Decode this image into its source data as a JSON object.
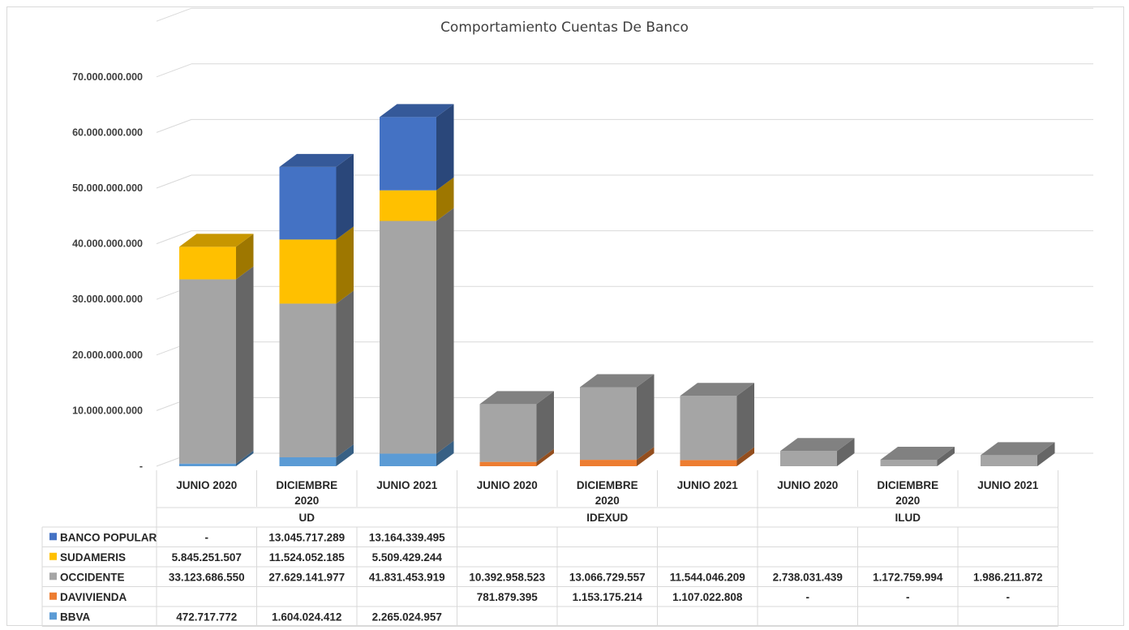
{
  "chart_data": {
    "type": "bar",
    "stacked": true,
    "style": "3d-column-with-data-table",
    "title": "Comportamiento Cuentas De Banco",
    "groups": [
      {
        "name": "UD",
        "categories": [
          "JUNIO 2020",
          "DICIEMBRE 2020",
          "JUNIO 2021"
        ]
      },
      {
        "name": "IDEXUD",
        "categories": [
          "JUNIO 2020",
          "DICIEMBRE 2020",
          "JUNIO 2021"
        ]
      },
      {
        "name": "ILUD",
        "categories": [
          "JUNIO 2020",
          "DICIEMBRE 2020",
          "JUNIO 2021"
        ]
      }
    ],
    "categories": [
      "JUNIO 2020",
      "DICIEMBRE 2020",
      "JUNIO 2021",
      "JUNIO 2020",
      "DICIEMBRE 2020",
      "JUNIO 2021",
      "JUNIO 2020",
      "DICIEMBRE 2020",
      "JUNIO 2021"
    ],
    "category_lines": [
      [
        "JUNIO 2020"
      ],
      [
        "DICIEMBRE",
        "2020"
      ],
      [
        "JUNIO 2021"
      ],
      [
        "JUNIO 2020"
      ],
      [
        "DICIEMBRE",
        "2020"
      ],
      [
        "JUNIO 2021"
      ],
      [
        "JUNIO 2020"
      ],
      [
        "DICIEMBRE",
        "2020"
      ],
      [
        "JUNIO 2021"
      ]
    ],
    "series": [
      {
        "name": "BANCO POPULAR",
        "color": "#4472c4",
        "values": [
          0,
          13045717289,
          13164339495,
          null,
          null,
          null,
          null,
          null,
          null
        ],
        "labels": [
          "-",
          "13.045.717.289",
          "13.164.339.495",
          "",
          "",
          "",
          "",
          "",
          ""
        ]
      },
      {
        "name": "SUDAMERIS",
        "color": "#ffc000",
        "values": [
          5845251507,
          11524052185,
          5509429244,
          null,
          null,
          null,
          null,
          null,
          null
        ],
        "labels": [
          "5.845.251.507",
          "11.524.052.185",
          "5.509.429.244",
          "",
          "",
          "",
          "",
          "",
          ""
        ]
      },
      {
        "name": "OCCIDENTE",
        "color": "#a5a5a5",
        "values": [
          33123686550,
          27629141977,
          41831453919,
          10392958523,
          13066729557,
          11544046209,
          2738031439,
          1172759994,
          1986211872
        ],
        "labels": [
          "33.123.686.550",
          "27.629.141.977",
          "41.831.453.919",
          "10.392.958.523",
          "13.066.729.557",
          "11.544.046.209",
          "2.738.031.439",
          "1.172.759.994",
          "1.986.211.872"
        ]
      },
      {
        "name": "DAVIVIENDA",
        "color": "#ed7d31",
        "values": [
          null,
          null,
          null,
          781879395,
          1153175214,
          1107022808,
          0,
          0,
          0
        ],
        "labels": [
          "",
          "",
          "",
          "781.879.395",
          "1.153.175.214",
          "1.107.022.808",
          "-",
          "-",
          "-"
        ]
      },
      {
        "name": "BBVA",
        "color": "#5b9bd5",
        "values": [
          472717772,
          1604024412,
          2265024957,
          null,
          null,
          null,
          null,
          null,
          null
        ],
        "labels": [
          "472.717.772",
          "1.604.024.412",
          "2.265.024.957",
          "",
          "",
          "",
          "",
          "",
          ""
        ]
      }
    ],
    "stack_order_bottom_to_top": [
      "BBVA",
      "DAVIVIENDA",
      "OCCIDENTE",
      "SUDAMERIS",
      "BANCO POPULAR"
    ],
    "yticks": [
      0,
      10000000000,
      20000000000,
      30000000000,
      40000000000,
      50000000000,
      60000000000,
      70000000000
    ],
    "ytick_labels": [
      "-",
      "10.000.000.000",
      "20.000.000.000",
      "30.000.000.000",
      "40.000.000.000",
      "50.000.000.000",
      "60.000.000.000",
      "70.000.000.000"
    ],
    "ylim": [
      0,
      80000000000
    ],
    "grid": true,
    "legend": "data-table-left",
    "xlabel": "",
    "ylabel": ""
  }
}
